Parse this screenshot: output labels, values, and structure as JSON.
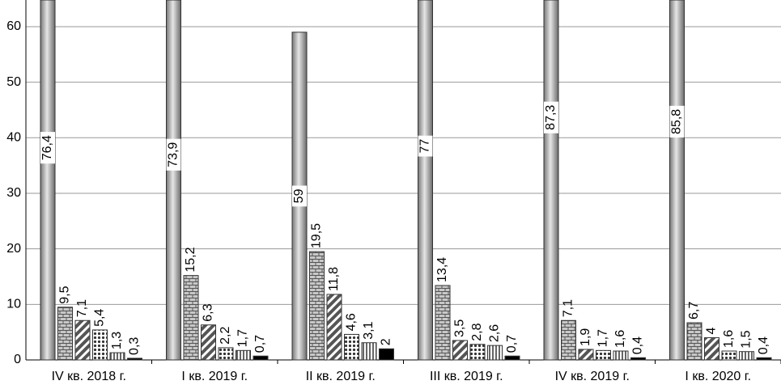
{
  "chart_data": {
    "type": "bar",
    "grid": true,
    "categories": [
      "IV кв. 2018 г.",
      "I кв. 2019 г.",
      "II кв. 2019 г.",
      "III кв. 2019 г.",
      "IV кв. 2019 г.",
      "I кв. 2020 г."
    ],
    "ylim": [
      0,
      64.8
    ],
    "yticks": [
      0,
      10,
      20,
      30,
      40,
      50,
      60
    ],
    "series": [
      {
        "color": "#999999",
        "pattern": "cylinder",
        "values": [
          76.4,
          73.9,
          59,
          77,
          87.3,
          85.8
        ],
        "value_labels": [
          "76,4",
          "73,9",
          "59",
          "77",
          "87,3",
          "85,8"
        ]
      },
      {
        "color": "#bbbbbb",
        "pattern": "brick",
        "values": [
          9.5,
          15.2,
          19.5,
          13.4,
          7.1,
          6.7
        ],
        "value_labels": [
          "9,5",
          "15,2",
          "19,5",
          "13,4",
          "7,1",
          "6,7"
        ]
      },
      {
        "color": "#555555",
        "pattern": "diagonal",
        "values": [
          7.1,
          6.3,
          11.8,
          3.5,
          1.9,
          4
        ],
        "value_labels": [
          "7,1",
          "6,3",
          "11,8",
          "3,5",
          "1,9",
          "4"
        ]
      },
      {
        "color": "#333333",
        "pattern": "dots",
        "values": [
          5.4,
          2.2,
          4.6,
          2.8,
          1.7,
          1.6
        ],
        "value_labels": [
          "5,4",
          "2,2",
          "4,6",
          "2,8",
          "1,7",
          "1,6"
        ]
      },
      {
        "color": "#666666",
        "pattern": "vertical",
        "values": [
          1.3,
          1.7,
          3.1,
          2.6,
          1.6,
          1.5
        ],
        "value_labels": [
          "1,3",
          "1,7",
          "3,1",
          "2,6",
          "1,6",
          "1,5"
        ]
      },
      {
        "color": "#000000",
        "pattern": "solid",
        "values": [
          0.3,
          0.7,
          2,
          0.7,
          0.4,
          0.4
        ],
        "value_labels": [
          "0,3",
          "0,7",
          "2",
          "0,7",
          "0,4",
          "0,4"
        ]
      }
    ]
  }
}
